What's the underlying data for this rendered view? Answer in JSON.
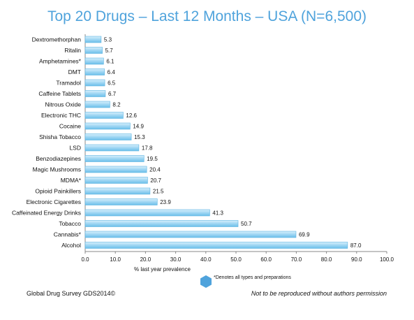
{
  "chart_data": {
    "type": "bar",
    "orientation": "horizontal",
    "title": "Top 20 Drugs – Last 12 Months – USA (N=6,500)",
    "xlabel": "% last year prevalence",
    "ylabel": "",
    "categories": [
      "Dextromethorphan",
      "Ritalin",
      "Amphetamines*",
      "DMT",
      "Tramadol",
      "Caffeine Tablets",
      "Nitrous Oxide",
      "Electronic THC",
      "Cocaine",
      "Shisha Tobacco",
      "LSD",
      "Benzodiazepines",
      "Magic Mushrooms",
      "MDMA*",
      "Opioid Painkillers",
      "Electronic Cigarettes",
      "Caffeinated Energy Drinks",
      "Tobacco",
      "Cannabis*",
      "Alcohol"
    ],
    "values": [
      5.3,
      5.7,
      6.1,
      6.4,
      6.5,
      6.7,
      8.2,
      12.6,
      14.9,
      15.3,
      17.8,
      19.5,
      20.4,
      20.7,
      21.5,
      23.9,
      41.3,
      50.7,
      69.9,
      87.0
    ],
    "value_labels": [
      "5.3",
      "5.7",
      "6.1",
      "6.4",
      "6.5",
      "6.7",
      "8.2",
      "12.6",
      "14.9",
      "15.3",
      "17.8",
      "19.5",
      "20.4",
      "20.7",
      "21.5",
      "23.9",
      "41.3",
      "50.7",
      "69.9",
      "87.0"
    ],
    "xlim": [
      0,
      100
    ],
    "xticks": [
      "0.0",
      "10.0",
      "20.0",
      "30.0",
      "40.0",
      "50.0",
      "60.0",
      "70.0",
      "80.0",
      "90.0",
      "100.0"
    ],
    "grid": false,
    "colors": {
      "bar": "#9fd6f3",
      "bar_edge": "#5bb3e2",
      "title": "#4fa3dc"
    }
  },
  "legend": {
    "note": "*Denotes all types and preparations",
    "icon": "hexagon-icon"
  },
  "footer": {
    "left": "Global Drug Survey GDS2014©",
    "right": "Not to be reproduced without authors permission"
  }
}
